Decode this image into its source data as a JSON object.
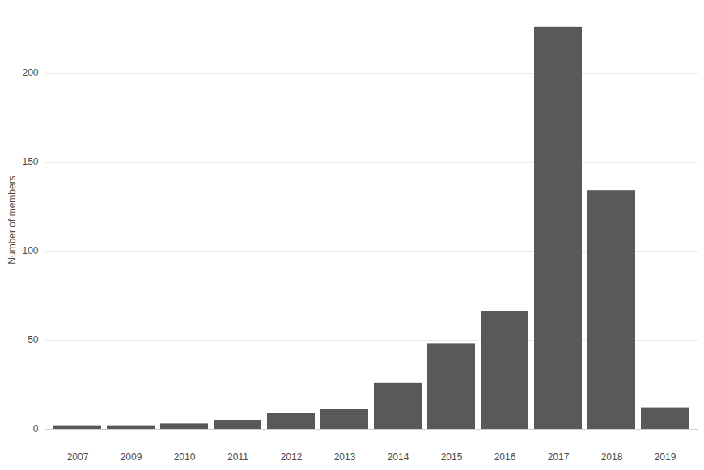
{
  "chart_data": {
    "type": "bar",
    "y_label": "Number of members",
    "categories": [
      "2007",
      "2009",
      "2010",
      "2011",
      "2012",
      "2013",
      "2014",
      "2015",
      "2016",
      "2017",
      "2018",
      "2019"
    ],
    "values": [
      2,
      2,
      3,
      5,
      9,
      11,
      26,
      48,
      66,
      226,
      134,
      12
    ],
    "color": "#595959",
    "ylim": [
      0,
      235
    ],
    "yticks": [
      0,
      50,
      100,
      150,
      200
    ],
    "grid": true
  }
}
